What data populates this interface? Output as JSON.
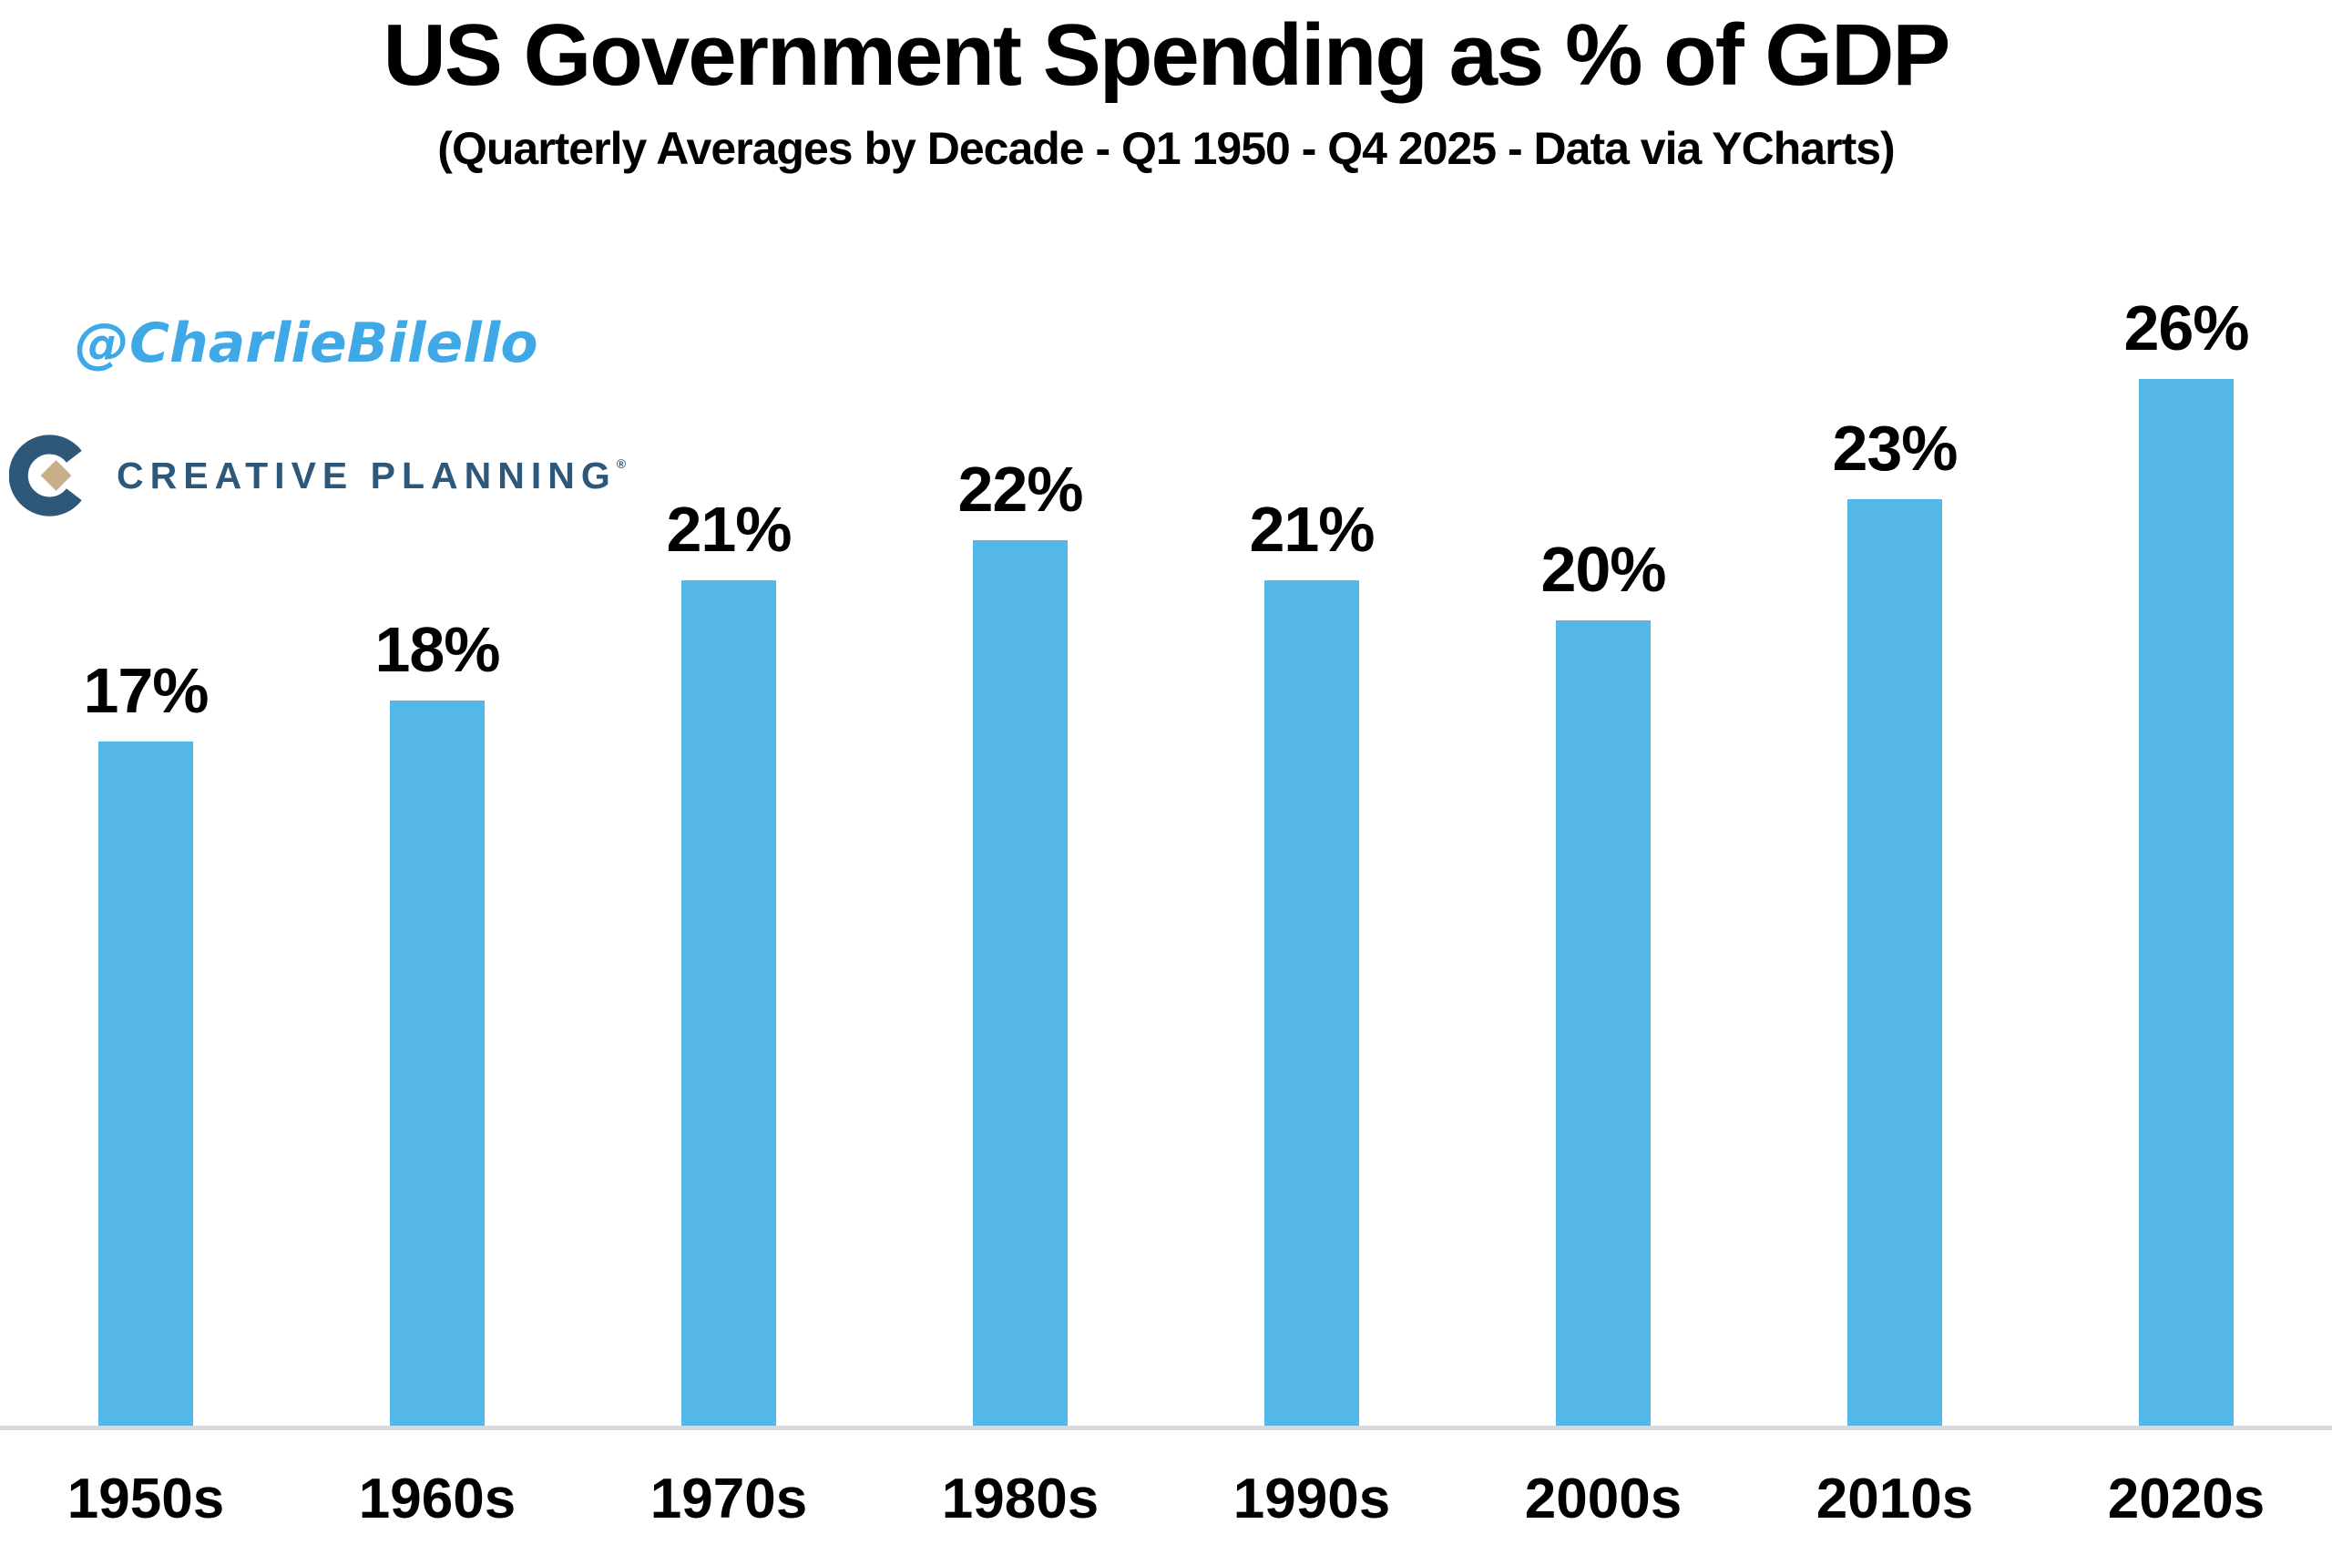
{
  "header": {
    "title": "US Government Spending as % of GDP",
    "subtitle": "(Quarterly Averages by Decade - Q1 1950 - Q4 2025 - Data via YCharts)"
  },
  "watermark": {
    "handle": "@CharlieBilello"
  },
  "logo": {
    "text": "CREATIVE PLANNING",
    "trademark": "®"
  },
  "colors": {
    "bar": "#55b6e8",
    "watermark": "#3fa9e8",
    "logo_navy": "#2e587a",
    "logo_gold": "#c7b089",
    "axis_line": "#d9d9d9",
    "text": "#000000",
    "background": "#ffffff"
  },
  "chart_data": {
    "type": "bar",
    "title": "US Government Spending as % of GDP",
    "subtitle": "(Quarterly Averages by Decade - Q1 1950 - Q4 2025 - Data via YCharts)",
    "categories": [
      "1950s",
      "1960s",
      "1970s",
      "1980s",
      "1990s",
      "2000s",
      "2010s",
      "2020s"
    ],
    "values": [
      17,
      18,
      21,
      22,
      21,
      20,
      23,
      26
    ],
    "data_labels": [
      "17%",
      "18%",
      "21%",
      "22%",
      "21%",
      "20%",
      "23%",
      "26%"
    ],
    "xlabel": "",
    "ylabel": "",
    "ylim": [
      0,
      28
    ],
    "grid": false,
    "legend": false,
    "y_axis_shown": false,
    "bar_color": "#55b6e8"
  }
}
